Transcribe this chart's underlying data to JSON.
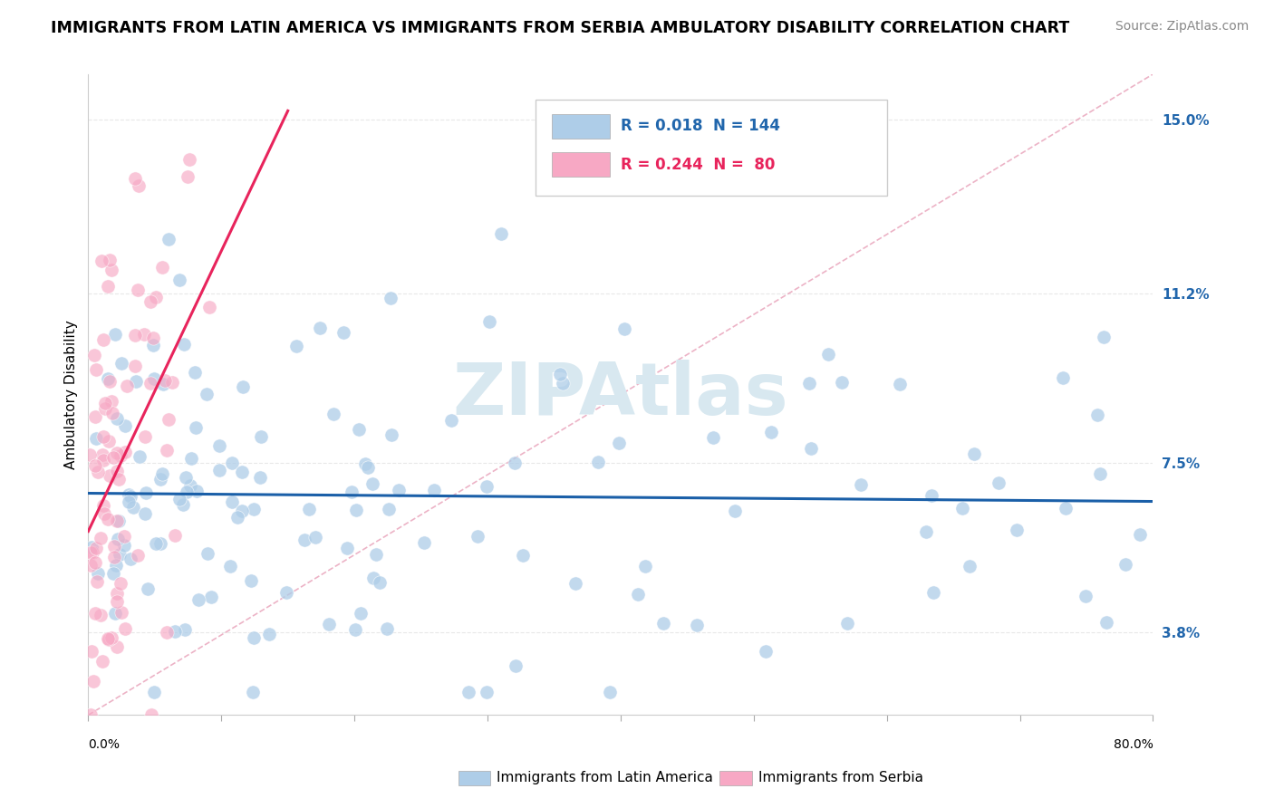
{
  "title": "IMMIGRANTS FROM LATIN AMERICA VS IMMIGRANTS FROM SERBIA AMBULATORY DISABILITY CORRELATION CHART",
  "source": "Source: ZipAtlas.com",
  "ylabel": "Ambulatory Disability",
  "right_yticks": [
    3.8,
    7.5,
    11.2,
    15.0
  ],
  "right_ytick_labels": [
    "3.8%",
    "7.5%",
    "11.2%",
    "15.0%"
  ],
  "xmin": 0.0,
  "xmax": 0.8,
  "ymin": 0.02,
  "ymax": 0.16,
  "latin_america_color": "#aecde8",
  "serbia_color": "#f7a8c4",
  "latin_america_trend_color": "#1a5fa8",
  "serbia_trend_color": "#e8245c",
  "ref_line_color": "#e8a0b8",
  "watermark": "ZIPAtlas",
  "watermark_color": "#d8e8f0",
  "background_color": "#ffffff",
  "grid_color": "#e8e8e8",
  "title_fontsize": 12.5,
  "source_fontsize": 10,
  "legend_R1": "R = 0.018",
  "legend_N1": "N = 144",
  "legend_R2": "R = 0.244",
  "legend_N2": "N =  80",
  "legend_color1": "#2166ac",
  "legend_color2": "#e8245c",
  "bottom_label1": "Immigrants from Latin America",
  "bottom_label2": "Immigrants from Serbia"
}
